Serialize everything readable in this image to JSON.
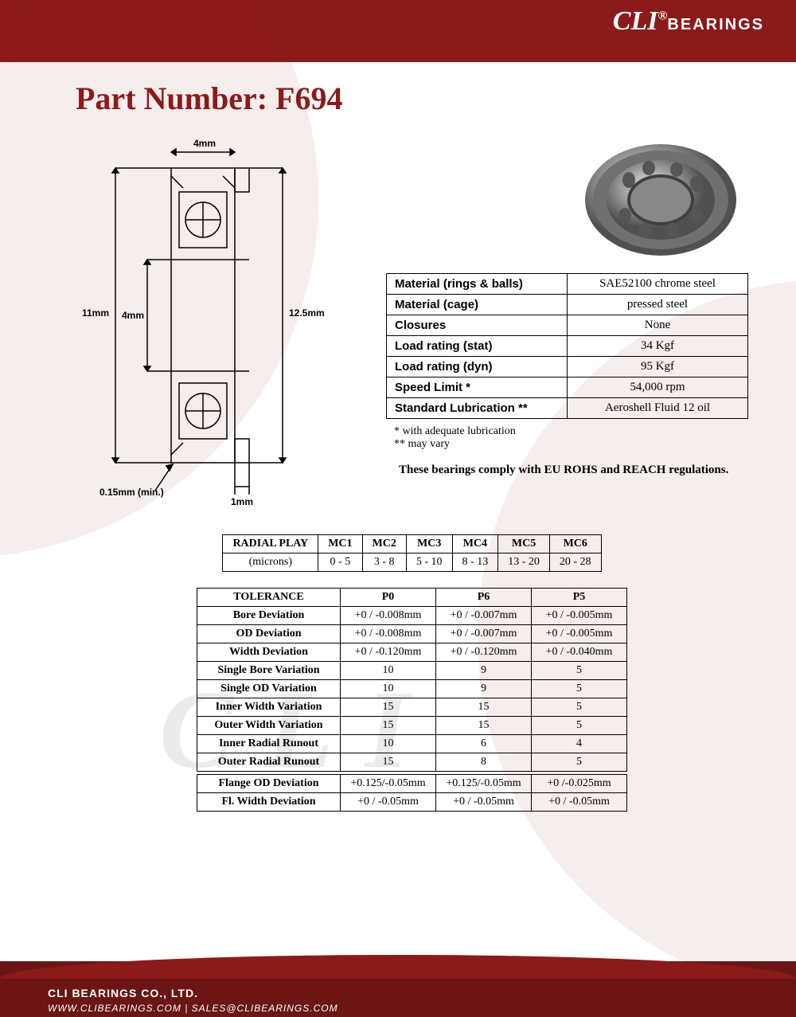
{
  "header": {
    "brand": "CLI",
    "brand_sub": "BEARINGS",
    "registered": "®"
  },
  "title": "Part Number: F694",
  "diagram": {
    "dims": {
      "top_width": "4mm",
      "outer_height": "11mm",
      "inner_bore": "4mm",
      "flange_od": "12.5mm",
      "chamfer": "0.15mm (min.)",
      "flange_width": "1mm"
    }
  },
  "specs": [
    {
      "label": "Material (rings & balls)",
      "value": "SAE52100 chrome steel"
    },
    {
      "label": "Material (cage)",
      "value": "pressed steel"
    },
    {
      "label": "Closures",
      "value": "None"
    },
    {
      "label": "Load rating (stat)",
      "value": "34 Kgf"
    },
    {
      "label": "Load rating (dyn)",
      "value": "95 Kgf"
    },
    {
      "label": "Speed Limit *",
      "value": "54,000 rpm"
    },
    {
      "label": "Standard Lubrication **",
      "value": "Aeroshell Fluid 12 oil"
    }
  ],
  "footnotes": {
    "n1": "* with adequate lubrication",
    "n2": "** may vary"
  },
  "compliance": "These bearings comply with EU ROHS and REACH  regulations.",
  "radial_play": {
    "title": "RADIAL PLAY",
    "unit": "(microns)",
    "columns": [
      "MC1",
      "MC2",
      "MC3",
      "MC4",
      "MC5",
      "MC6"
    ],
    "values": [
      "0 - 5",
      "3 - 8",
      "5 - 10",
      "8 - 13",
      "13 - 20",
      "20 - 28"
    ]
  },
  "tolerance": {
    "title": "TOLERANCE",
    "columns": [
      "P0",
      "P6",
      "P5"
    ],
    "rows": [
      {
        "label": "Bore Deviation",
        "vals": [
          "+0 / -0.008mm",
          "+0 / -0.007mm",
          "+0 / -0.005mm"
        ]
      },
      {
        "label": "OD Deviation",
        "vals": [
          "+0 / -0.008mm",
          "+0 / -0.007mm",
          "+0 / -0.005mm"
        ]
      },
      {
        "label": "Width Deviation",
        "vals": [
          "+0 / -0.120mm",
          "+0 / -0.120mm",
          "+0 / -0.040mm"
        ]
      },
      {
        "label": "Single Bore Variation",
        "vals": [
          "10",
          "9",
          "5"
        ]
      },
      {
        "label": "Single OD Variation",
        "vals": [
          "10",
          "9",
          "5"
        ]
      },
      {
        "label": "Inner Width Variation",
        "vals": [
          "15",
          "15",
          "5"
        ]
      },
      {
        "label": "Outer Width Variation",
        "vals": [
          "15",
          "15",
          "5"
        ]
      },
      {
        "label": "Inner Radial Runout",
        "vals": [
          "10",
          "6",
          "4"
        ]
      },
      {
        "label": "Outer Radial Runout",
        "vals": [
          "15",
          "8",
          "5"
        ]
      }
    ],
    "rows2": [
      {
        "label": "Flange OD Deviation",
        "vals": [
          "+0.125/-0.05mm",
          "+0.125/-0.05mm",
          "+0 /-0.025mm"
        ]
      },
      {
        "label": "Fl. Width Deviation",
        "vals": [
          "+0 / -0.05mm",
          "+0 / -0.05mm",
          "+0 / -0.05mm"
        ]
      }
    ]
  },
  "footer": {
    "company": "CLI BEARINGS CO., LTD.",
    "contact": "WWW.CLIBEARINGS.COM  |  SALES@CLIBEARINGS.COM"
  },
  "colors": {
    "brand_red": "#8b1a1a",
    "dark_red": "#6b1515",
    "text_black": "#000000",
    "white": "#ffffff"
  }
}
